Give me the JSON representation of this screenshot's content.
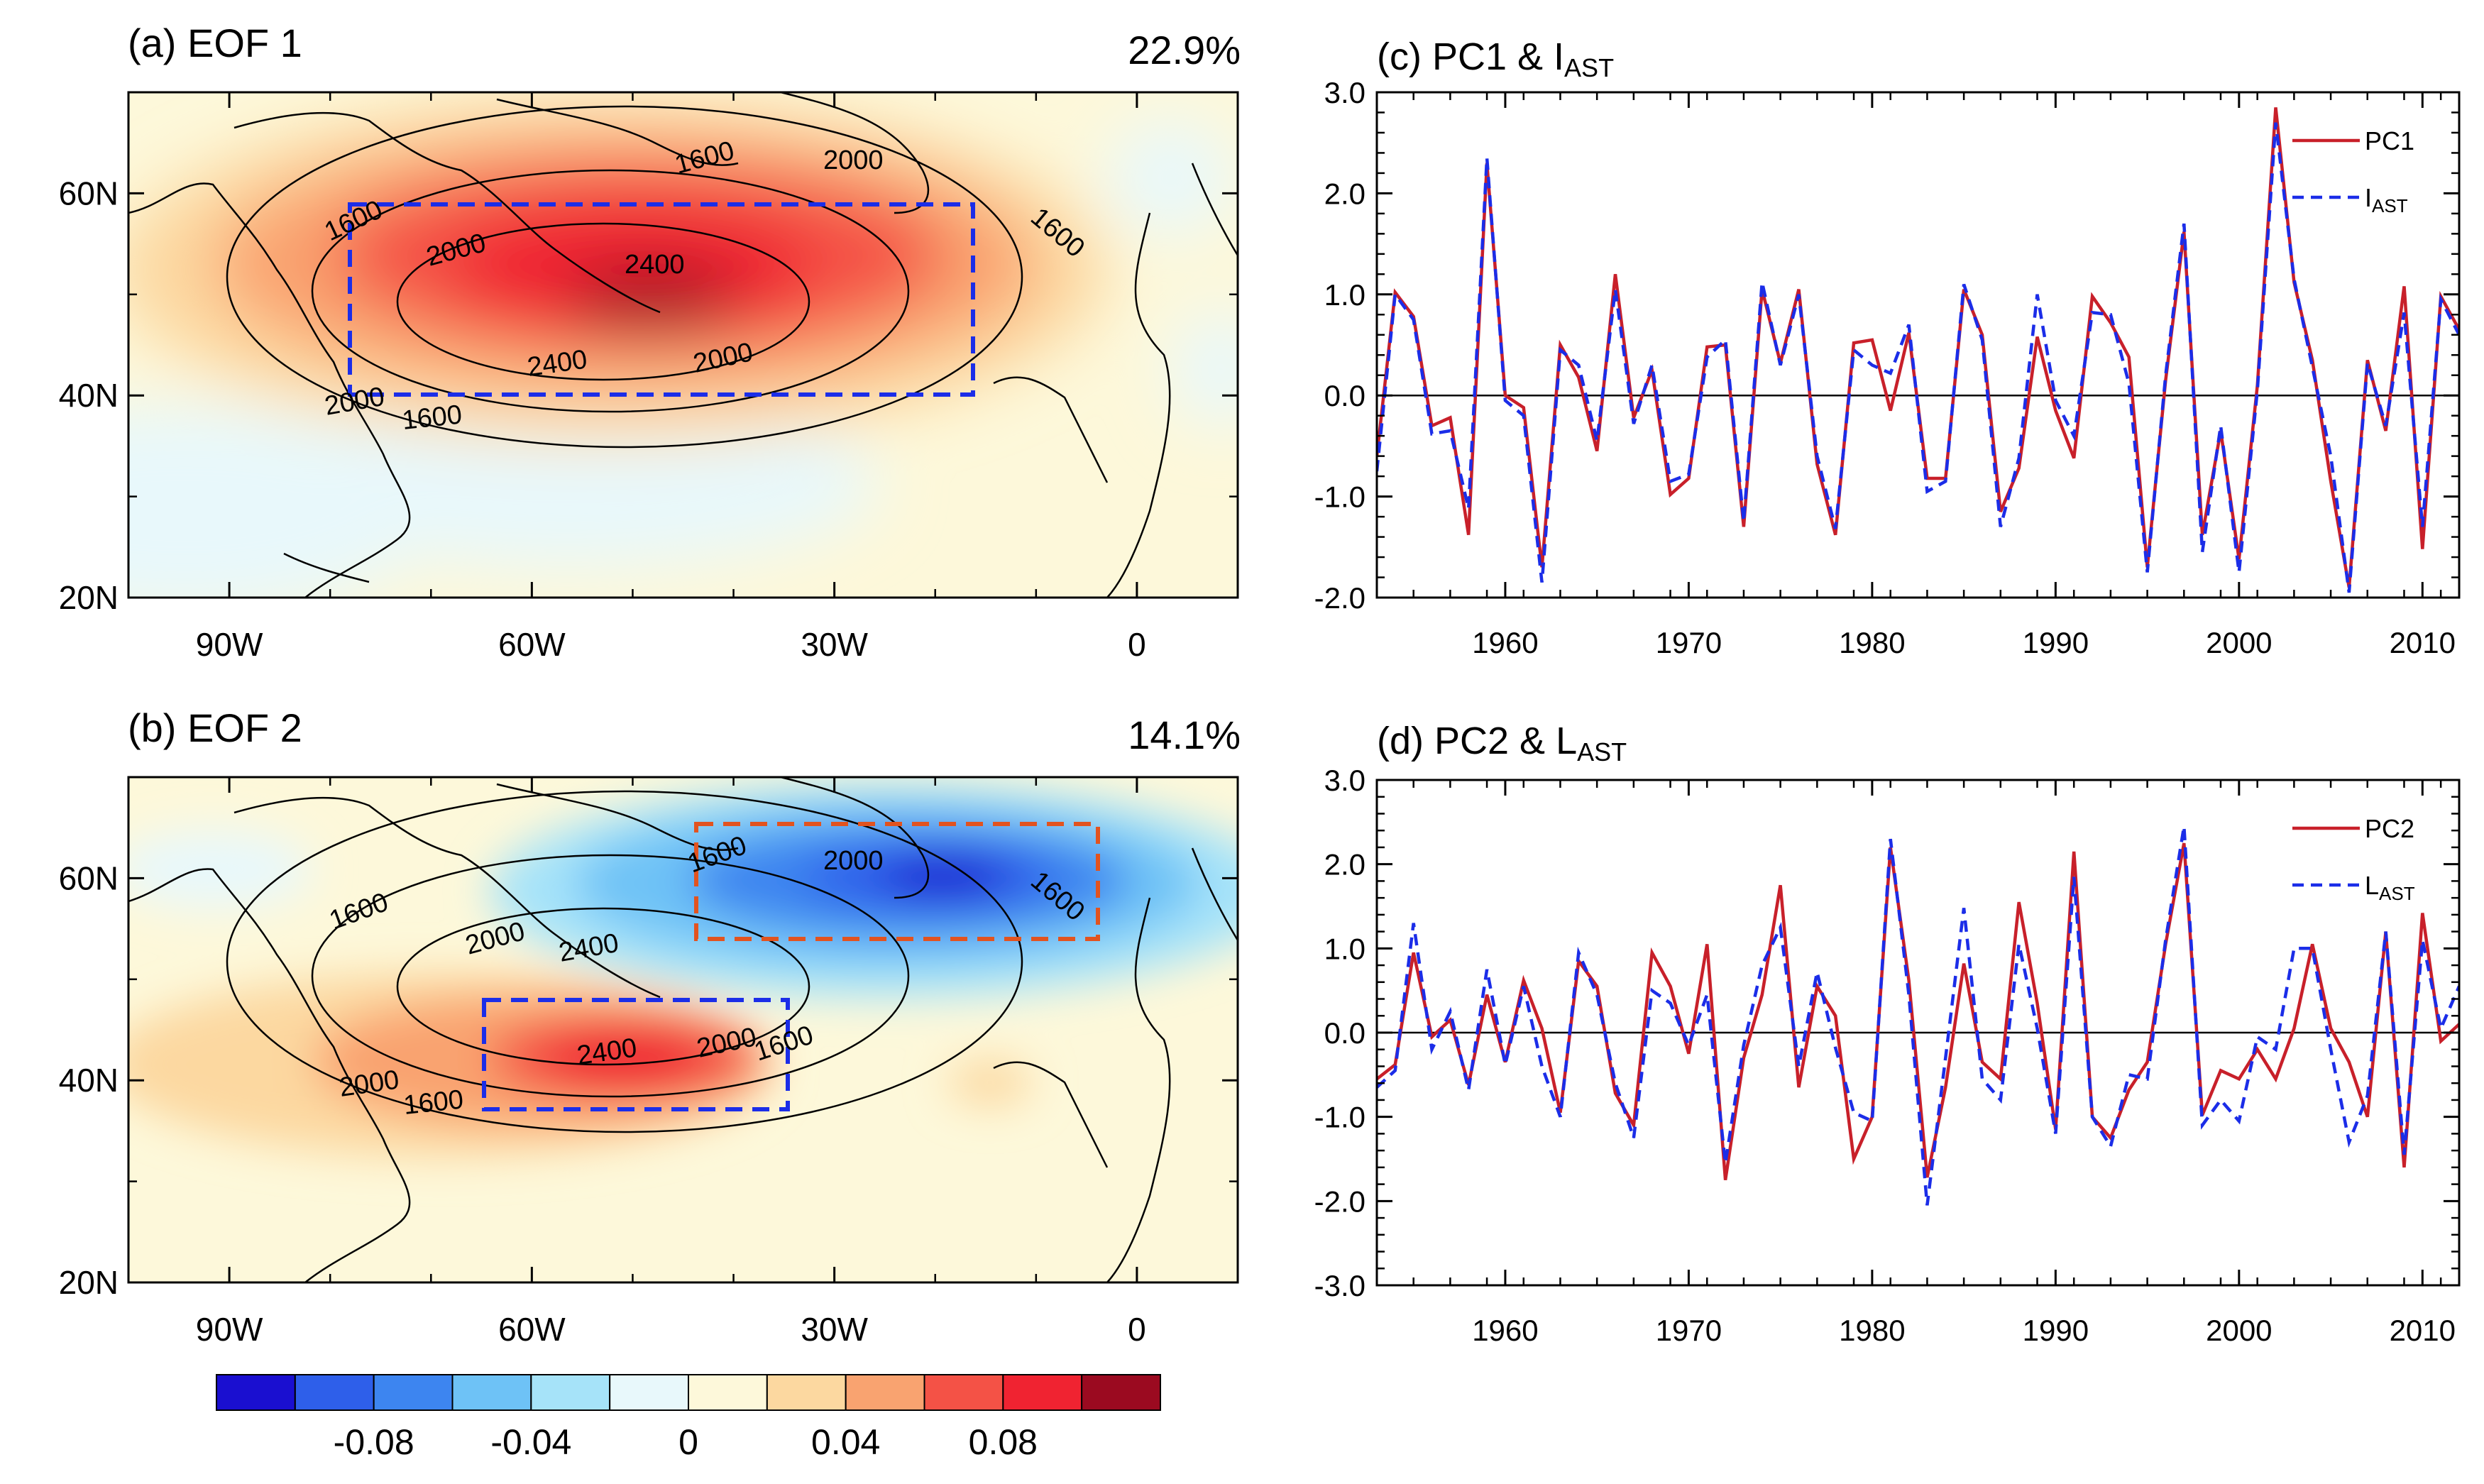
{
  "panels": {
    "a": {
      "title": "(a) EOF 1",
      "variance": "22.9%"
    },
    "b": {
      "title": "(b) EOF 2",
      "variance": "14.1%"
    },
    "c": {
      "title_main": "(c) PC1 & I",
      "title_sub": "AST",
      "legend": [
        {
          "label": "PC1",
          "sub": ""
        },
        {
          "label": "I",
          "sub": "AST"
        }
      ]
    },
    "d": {
      "title_main": "(d) PC2 & L",
      "title_sub": "AST",
      "legend": [
        {
          "label": "PC2",
          "sub": ""
        },
        {
          "label": "L",
          "sub": "AST"
        }
      ]
    }
  },
  "map_axes": {
    "lon_ticks": [
      "90W",
      "60W",
      "30W",
      "0"
    ],
    "lat_ticks": [
      "60N",
      "40N",
      "20N"
    ],
    "lon_values": [
      -90,
      -60,
      -30,
      0
    ],
    "lat_values": [
      60,
      40,
      20
    ],
    "lon_range": [
      -100,
      10
    ],
    "lat_range": [
      20,
      70
    ]
  },
  "contour_labels": {
    "a": [
      "1600",
      "2000",
      "1600",
      "1600",
      "2000",
      "2400",
      "2400",
      "2000",
      "1600",
      "2000",
      "1600"
    ],
    "b": [
      "1600",
      "2000",
      "1600",
      "1600",
      "2000",
      "2400",
      "2400",
      "2000",
      "1600",
      "2000",
      "1600"
    ]
  },
  "colorbar": {
    "colors": [
      "#1a0fd0",
      "#2e5fea",
      "#3d85f0",
      "#6ec2f6",
      "#a6e3f9",
      "#e8f8fb",
      "#fdf8da",
      "#fcd8a0",
      "#f9a370",
      "#f45246",
      "#f02331",
      "#9b0a20"
    ],
    "labels": [
      "-0.08",
      "-0.04",
      "0",
      "0.04",
      "0.08"
    ],
    "label_values": [
      -0.08,
      -0.04,
      0,
      0.04,
      0.08
    ],
    "min": -0.12,
    "max": 0.12
  },
  "colors": {
    "pc": "#c8202a",
    "index": "#1b2de8",
    "box_blue": "#1b2de8",
    "box_red": "#e2531f"
  },
  "chart_data": [
    {
      "type": "line",
      "panel": "c",
      "title": "PC1 & IAST",
      "x": [
        1953,
        1954,
        1955,
        1956,
        1957,
        1958,
        1959,
        1960,
        1961,
        1962,
        1963,
        1964,
        1965,
        1966,
        1967,
        1968,
        1969,
        1970,
        1971,
        1972,
        1973,
        1974,
        1975,
        1976,
        1977,
        1978,
        1979,
        1980,
        1981,
        1982,
        1983,
        1984,
        1985,
        1986,
        1987,
        1988,
        1989,
        1990,
        1991,
        1992,
        1993,
        1994,
        1995,
        1996,
        1997,
        1998,
        1999,
        2000,
        2001,
        2002,
        2003,
        2004,
        2005,
        2006,
        2007,
        2008,
        2009,
        2010,
        2011,
        2012
      ],
      "series": [
        {
          "name": "PC1",
          "values": [
            -0.6,
            1.02,
            0.78,
            -0.3,
            -0.22,
            -1.38,
            2.3,
            0.0,
            -0.12,
            -1.7,
            0.5,
            0.18,
            -0.55,
            1.2,
            -0.22,
            0.25,
            -0.98,
            -0.82,
            0.48,
            0.5,
            -1.3,
            1.05,
            0.32,
            1.05,
            -0.68,
            -1.38,
            0.52,
            0.55,
            -0.15,
            0.62,
            -0.82,
            -0.82,
            1.05,
            0.6,
            -1.15,
            -0.72,
            0.58,
            -0.15,
            -0.62,
            0.98,
            0.72,
            0.38,
            -1.7,
            0.15,
            1.62,
            -1.38,
            -0.35,
            -1.62,
            0.1,
            2.85,
            1.12,
            0.35,
            -0.85,
            -1.9,
            0.35,
            -0.35,
            1.08,
            -1.52,
            0.98,
            0.65
          ]
        },
        {
          "name": "IAST",
          "values": [
            -0.75,
            1.0,
            0.75,
            -0.38,
            -0.35,
            -1.12,
            2.35,
            -0.05,
            -0.2,
            -1.85,
            0.45,
            0.3,
            -0.45,
            1.05,
            -0.28,
            0.3,
            -0.85,
            -0.78,
            0.38,
            0.55,
            -1.25,
            1.12,
            0.3,
            1.0,
            -0.6,
            -1.32,
            0.45,
            0.3,
            0.22,
            0.7,
            -0.95,
            -0.85,
            1.1,
            0.55,
            -1.3,
            -0.62,
            1.0,
            -0.05,
            -0.4,
            0.82,
            0.8,
            0.12,
            -1.75,
            0.2,
            1.7,
            -1.55,
            -0.3,
            -1.75,
            0.05,
            2.7,
            1.15,
            0.28,
            -0.6,
            -1.95,
            0.32,
            -0.3,
            0.82,
            -1.3,
            0.95,
            0.6
          ]
        }
      ],
      "xlim": [
        1953,
        2012
      ],
      "ylim": [
        -2.0,
        3.0
      ],
      "xticks": [
        1960,
        1970,
        1980,
        1990,
        2000,
        2010
      ],
      "yticks": [
        -2.0,
        -1.0,
        0.0,
        1.0,
        2.0,
        3.0
      ],
      "ytick_labels": [
        "-2.0",
        "-1.0",
        "0.0",
        "1.0",
        "2.0",
        "3.0"
      ]
    },
    {
      "type": "line",
      "panel": "d",
      "title": "PC2 & LAST",
      "x": [
        1953,
        1954,
        1955,
        1956,
        1957,
        1958,
        1959,
        1960,
        1961,
        1962,
        1963,
        1964,
        1965,
        1966,
        1967,
        1968,
        1969,
        1970,
        1971,
        1972,
        1973,
        1974,
        1975,
        1976,
        1977,
        1978,
        1979,
        1980,
        1981,
        1982,
        1983,
        1984,
        1985,
        1986,
        1987,
        1988,
        1989,
        1990,
        1991,
        1992,
        1993,
        1994,
        1995,
        1996,
        1997,
        1998,
        1999,
        2000,
        2001,
        2002,
        2003,
        2004,
        2005,
        2006,
        2007,
        2008,
        2009,
        2010,
        2011,
        2012
      ],
      "series": [
        {
          "name": "PC2",
          "values": [
            -0.55,
            -0.38,
            0.95,
            -0.05,
            0.15,
            -0.62,
            0.45,
            -0.35,
            0.62,
            0.05,
            -0.95,
            0.85,
            0.55,
            -0.72,
            -1.1,
            0.95,
            0.55,
            -0.25,
            1.05,
            -1.75,
            -0.3,
            0.45,
            1.75,
            -0.65,
            0.55,
            0.2,
            -1.5,
            -1.0,
            2.2,
            0.62,
            -1.72,
            -0.65,
            0.82,
            -0.35,
            -0.55,
            1.55,
            0.35,
            -1.15,
            2.15,
            -1.0,
            -1.25,
            -0.68,
            -0.35,
            1.05,
            2.25,
            -0.98,
            -0.45,
            -0.55,
            -0.2,
            -0.55,
            0.05,
            1.05,
            0.05,
            -0.35,
            -1.0,
            1.2,
            -1.6,
            1.42,
            -0.1,
            0.1
          ]
        },
        {
          "name": "LAST",
          "values": [
            -0.65,
            -0.45,
            1.3,
            -0.2,
            0.25,
            -0.68,
            0.75,
            -0.38,
            0.55,
            -0.4,
            -1.0,
            0.95,
            0.45,
            -0.6,
            -1.25,
            0.5,
            0.35,
            -0.15,
            0.45,
            -1.55,
            -0.15,
            0.8,
            1.25,
            -0.4,
            0.72,
            -0.18,
            -0.95,
            -1.05,
            2.3,
            0.45,
            -2.05,
            -0.3,
            1.48,
            -0.55,
            -0.8,
            1.05,
            0.05,
            -1.2,
            1.85,
            -1.0,
            -1.35,
            -0.5,
            -0.55,
            1.1,
            2.45,
            -1.1,
            -0.8,
            -1.05,
            -0.05,
            -0.2,
            1.0,
            1.0,
            -0.2,
            -1.3,
            -0.75,
            1.2,
            -1.45,
            1.1,
            0.05,
            0.55
          ]
        }
      ],
      "xlim": [
        1953,
        2012
      ],
      "ylim": [
        -3.0,
        3.0
      ],
      "xticks": [
        1960,
        1970,
        1980,
        1990,
        2000,
        2010
      ],
      "yticks": [
        -3.0,
        -2.0,
        -1.0,
        0.0,
        1.0,
        2.0,
        3.0
      ],
      "ytick_labels": [
        "-3.0",
        "-2.0",
        "-1.0",
        "0.0",
        "1.0",
        "2.0",
        "3.0"
      ]
    }
  ]
}
